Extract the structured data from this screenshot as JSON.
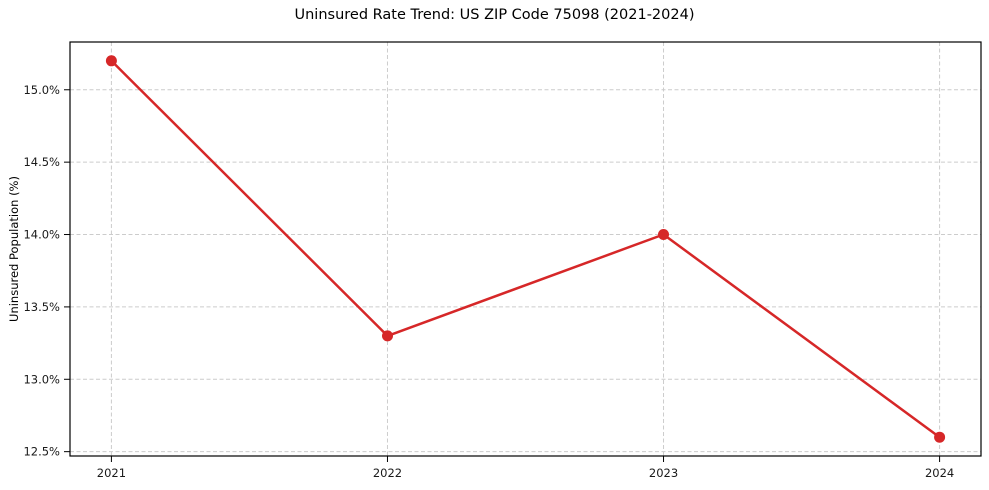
{
  "chart_data": {
    "type": "line",
    "title": "Uninsured Rate Trend: US ZIP Code 75098 (2021-2024)",
    "xlabel": "",
    "ylabel": "Uninsured Population (%)",
    "x": [
      2021,
      2022,
      2023,
      2024
    ],
    "series": [
      {
        "name": "Uninsured rate",
        "values": [
          15.2,
          13.3,
          14.0,
          12.6
        ],
        "color": "#d62728",
        "marker": "circle"
      }
    ],
    "xticks": [
      2021,
      2022,
      2023,
      2024
    ],
    "xtick_labels": [
      "2021",
      "2022",
      "2023",
      "2024"
    ],
    "yticks": [
      12.5,
      13.0,
      13.5,
      14.0,
      14.5,
      15.0
    ],
    "ytick_labels": [
      "12.5%",
      "13.0%",
      "13.5%",
      "14.0%",
      "14.5%",
      "15.0%"
    ],
    "xlim": [
      2020.85,
      2024.15
    ],
    "ylim": [
      12.47,
      15.33
    ],
    "grid": true,
    "legend": "none",
    "colors": {
      "line": "#d62728",
      "grid": "#cccccc",
      "spine": "#000000",
      "text": "#1a1a1a",
      "background": "#ffffff"
    }
  }
}
